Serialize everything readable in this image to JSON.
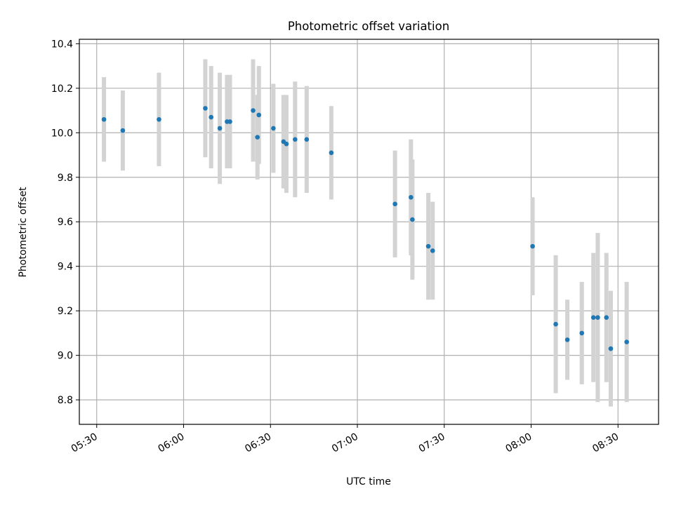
{
  "chart_data": {
    "type": "scatter",
    "title": "Photometric offset variation",
    "xlabel": "UTC time",
    "ylabel": "Photometric offset",
    "xlim": [
      "05:24",
      "08:44"
    ],
    "ylim": [
      8.69,
      10.42
    ],
    "grid": true,
    "x_ticks": [
      "05:30",
      "06:00",
      "06:30",
      "07:00",
      "07:30",
      "08:00",
      "08:30"
    ],
    "y_ticks": [
      "8.8",
      "9.0",
      "9.2",
      "9.4",
      "9.6",
      "9.8",
      "10.0",
      "10.2",
      "10.4"
    ],
    "error_bar_color": "#d3d3d3",
    "point_color": "#1f77b4",
    "points": [
      {
        "x": "05:32:30",
        "y": 10.06,
        "err": 0.19
      },
      {
        "x": "05:39:00",
        "y": 10.01,
        "err": 0.18
      },
      {
        "x": "05:51:30",
        "y": 10.06,
        "err": 0.21
      },
      {
        "x": "06:07:30",
        "y": 10.11,
        "err": 0.22
      },
      {
        "x": "06:09:30",
        "y": 10.07,
        "err": 0.23
      },
      {
        "x": "06:12:30",
        "y": 10.02,
        "err": 0.25
      },
      {
        "x": "06:15:00",
        "y": 10.05,
        "err": 0.21
      },
      {
        "x": "06:16:00",
        "y": 10.05,
        "err": 0.21
      },
      {
        "x": "06:24:00",
        "y": 10.1,
        "err": 0.23
      },
      {
        "x": "06:25:30",
        "y": 9.98,
        "err": 0.19
      },
      {
        "x": "06:26:00",
        "y": 10.08,
        "err": 0.22
      },
      {
        "x": "06:31:00",
        "y": 10.02,
        "err": 0.2
      },
      {
        "x": "06:34:30",
        "y": 9.96,
        "err": 0.21
      },
      {
        "x": "06:35:30",
        "y": 9.95,
        "err": 0.22
      },
      {
        "x": "06:38:30",
        "y": 9.97,
        "err": 0.26
      },
      {
        "x": "06:42:30",
        "y": 9.97,
        "err": 0.24
      },
      {
        "x": "06:51:00",
        "y": 9.91,
        "err": 0.21
      },
      {
        "x": "07:13:00",
        "y": 9.68,
        "err": 0.24
      },
      {
        "x": "07:18:30",
        "y": 9.71,
        "err": 0.26
      },
      {
        "x": "07:19:00",
        "y": 9.61,
        "err": 0.27
      },
      {
        "x": "07:24:30",
        "y": 9.49,
        "err": 0.24
      },
      {
        "x": "07:26:00",
        "y": 9.47,
        "err": 0.22
      },
      {
        "x": "08:00:30",
        "y": 9.49,
        "err": 0.22
      },
      {
        "x": "08:08:30",
        "y": 9.14,
        "err": 0.31
      },
      {
        "x": "08:12:30",
        "y": 9.07,
        "err": 0.18
      },
      {
        "x": "08:17:30",
        "y": 9.1,
        "err": 0.23
      },
      {
        "x": "08:21:30",
        "y": 9.17,
        "err": 0.29
      },
      {
        "x": "08:23:00",
        "y": 9.17,
        "err": 0.38
      },
      {
        "x": "08:26:00",
        "y": 9.17,
        "err": 0.29
      },
      {
        "x": "08:27:30",
        "y": 9.03,
        "err": 0.26
      },
      {
        "x": "08:33:00",
        "y": 9.06,
        "err": 0.27
      }
    ]
  }
}
